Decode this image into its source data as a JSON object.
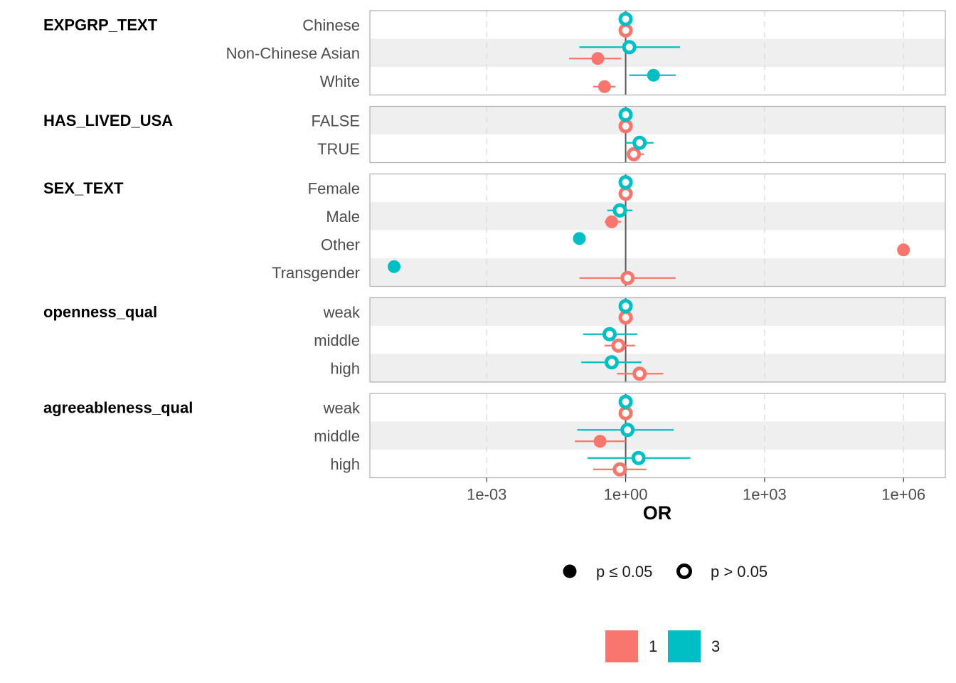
{
  "chart_data": {
    "type": "scatter",
    "subtype": "forest-plot",
    "xlabel": "OR",
    "x_scale": "log10",
    "xlim": [
      3e-06,
      8000000.0
    ],
    "x_ticks": [
      {
        "value": 0.001,
        "label": "1e-03"
      },
      {
        "value": 1,
        "label": "1e+00"
      },
      {
        "value": 1000,
        "label": "1e+03"
      },
      {
        "value": 1000000,
        "label": "1e+06"
      }
    ],
    "reference_line": 1,
    "legend_placement": "bottom",
    "shape_legend": [
      {
        "label": "p ≤ 0.05",
        "shape": "filled-circle"
      },
      {
        "label": "p > 0.05",
        "shape": "hollow-circle"
      }
    ],
    "color_legend": [
      {
        "label": "1",
        "color": "#F8766D"
      },
      {
        "label": "3",
        "color": "#00BFC4"
      }
    ],
    "groups": [
      {
        "variable": "EXPGRP_TEXT",
        "levels": [
          {
            "label": "Chinese",
            "points": [
              {
                "series": "1",
                "or": 1,
                "low": 1,
                "high": 1,
                "significant": false
              },
              {
                "series": "3",
                "or": 1,
                "low": 1,
                "high": 1,
                "significant": false
              }
            ]
          },
          {
            "label": "Non-Chinese Asian",
            "points": [
              {
                "series": "1",
                "or": 0.25,
                "low": 0.06,
                "high": 0.8,
                "significant": true
              },
              {
                "series": "3",
                "or": 1.2,
                "low": 0.1,
                "high": 15,
                "significant": false
              }
            ]
          },
          {
            "label": "White",
            "points": [
              {
                "series": "1",
                "or": 0.35,
                "low": 0.2,
                "high": 0.6,
                "significant": true
              },
              {
                "series": "3",
                "or": 4.0,
                "low": 1.2,
                "high": 12,
                "significant": true
              }
            ]
          }
        ]
      },
      {
        "variable": "HAS_LIVED_USA",
        "levels": [
          {
            "label": "FALSE",
            "points": [
              {
                "series": "1",
                "or": 1,
                "low": 1,
                "high": 1,
                "significant": false
              },
              {
                "series": "3",
                "or": 1,
                "low": 1,
                "high": 1,
                "significant": false
              }
            ]
          },
          {
            "label": "TRUE",
            "points": [
              {
                "series": "1",
                "or": 1.5,
                "low": 1.1,
                "high": 2.5,
                "significant": false
              },
              {
                "series": "3",
                "or": 2.0,
                "low": 1.0,
                "high": 4.0,
                "significant": false
              }
            ]
          }
        ]
      },
      {
        "variable": "SEX_TEXT",
        "levels": [
          {
            "label": "Female",
            "points": [
              {
                "series": "1",
                "or": 1,
                "low": 1,
                "high": 1,
                "significant": false
              },
              {
                "series": "3",
                "or": 1,
                "low": 1,
                "high": 1,
                "significant": false
              }
            ]
          },
          {
            "label": "Male",
            "points": [
              {
                "series": "1",
                "or": 0.5,
                "low": 0.35,
                "high": 0.8,
                "significant": true
              },
              {
                "series": "3",
                "or": 0.75,
                "low": 0.4,
                "high": 1.4,
                "significant": false
              }
            ]
          },
          {
            "label": "Other",
            "points": [
              {
                "series": "1",
                "or": 1000000,
                "low": 1000000,
                "high": 1000000,
                "significant": true
              },
              {
                "series": "3",
                "or": 0.1,
                "low": 0.1,
                "high": 0.1,
                "significant": true
              }
            ]
          },
          {
            "label": "Transgender",
            "points": [
              {
                "series": "1",
                "or": 1.1,
                "low": 0.1,
                "high": 12,
                "significant": false
              },
              {
                "series": "3",
                "or": 1e-05,
                "low": 1e-05,
                "high": 1e-05,
                "significant": true
              }
            ]
          }
        ]
      },
      {
        "variable": "openness_qual",
        "levels": [
          {
            "label": "weak",
            "points": [
              {
                "series": "1",
                "or": 1,
                "low": 1,
                "high": 1,
                "significant": false
              },
              {
                "series": "3",
                "or": 1,
                "low": 1,
                "high": 1,
                "significant": false
              }
            ]
          },
          {
            "label": "middle",
            "points": [
              {
                "series": "1",
                "or": 0.7,
                "low": 0.35,
                "high": 1.6,
                "significant": false
              },
              {
                "series": "3",
                "or": 0.45,
                "low": 0.12,
                "high": 1.8,
                "significant": false
              }
            ]
          },
          {
            "label": "high",
            "points": [
              {
                "series": "1",
                "or": 2.0,
                "low": 0.65,
                "high": 6.5,
                "significant": false
              },
              {
                "series": "3",
                "or": 0.5,
                "low": 0.11,
                "high": 2.2,
                "significant": false
              }
            ]
          }
        ]
      },
      {
        "variable": "agreeableness_qual",
        "levels": [
          {
            "label": "weak",
            "points": [
              {
                "series": "1",
                "or": 1,
                "low": 1,
                "high": 1,
                "significant": false
              },
              {
                "series": "3",
                "or": 1,
                "low": 1,
                "high": 1,
                "significant": false
              }
            ]
          },
          {
            "label": "middle",
            "points": [
              {
                "series": "1",
                "or": 0.28,
                "low": 0.08,
                "high": 1.0,
                "significant": true
              },
              {
                "series": "3",
                "or": 1.1,
                "low": 0.09,
                "high": 11,
                "significant": false
              }
            ]
          },
          {
            "label": "high",
            "points": [
              {
                "series": "1",
                "or": 0.75,
                "low": 0.2,
                "high": 2.8,
                "significant": false
              },
              {
                "series": "3",
                "or": 1.9,
                "low": 0.15,
                "high": 25,
                "significant": false
              }
            ]
          }
        ]
      }
    ]
  }
}
